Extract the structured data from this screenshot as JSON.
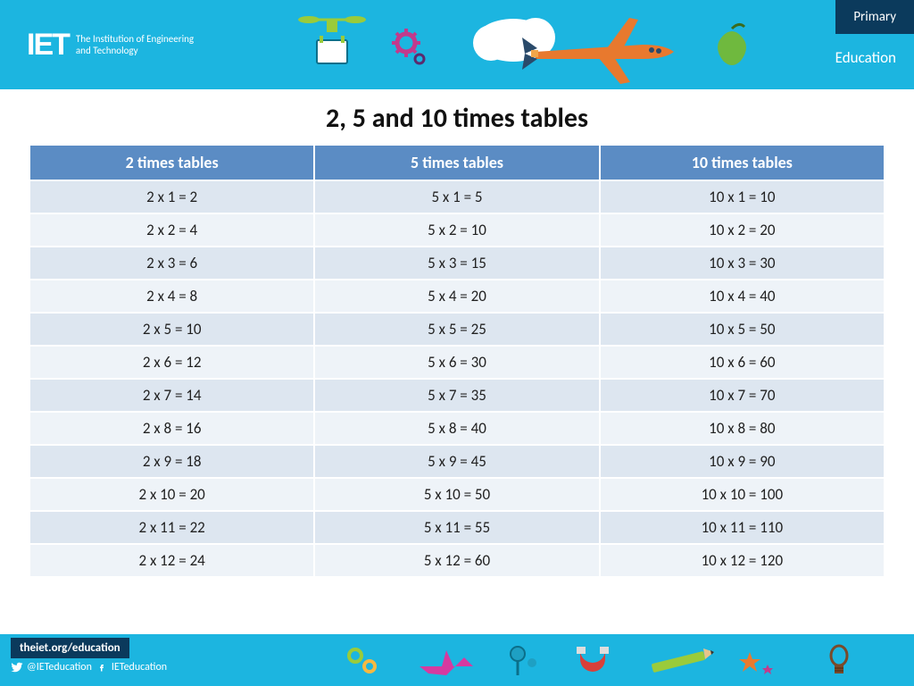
{
  "colors": {
    "header_bg": "#1cb5e0",
    "brand_box": "#0b3a5c",
    "th_bg": "#5b8cc4",
    "row_odd": "#dde6f0",
    "row_even": "#eef3f8",
    "title": "#111111",
    "cell_text": "#222222",
    "white": "#ffffff"
  },
  "header": {
    "logo_mark": "IET",
    "logo_tagline": "The Institution of Engineering and Technology",
    "primary_label": "Primary",
    "education_label": "Education",
    "icons": [
      "drone",
      "gear",
      "cloud-plane",
      "apple"
    ]
  },
  "title": "2, 5 and 10 times tables",
  "table": {
    "columns": [
      "2 times tables",
      "5 times tables",
      "10 times tables"
    ],
    "col_width_pct": [
      33.33,
      33.33,
      33.33
    ],
    "header_fontsize": 18,
    "cell_fontsize": 17,
    "rows": [
      [
        "2 x 1 = 2",
        "5 x 1 = 5",
        "10 x 1 = 10"
      ],
      [
        "2 x 2 = 4",
        "5 x 2 = 10",
        "10 x 2 = 20"
      ],
      [
        "2 x 3 = 6",
        "5 x 3 = 15",
        "10 x 3 = 30"
      ],
      [
        "2 x 4 = 8",
        "5 x 4 = 20",
        "10 x 4 = 40"
      ],
      [
        "2 x 5 = 10",
        "5 x 5 = 25",
        "10 x 5 = 50"
      ],
      [
        "2 x 6 = 12",
        "5 x 6 = 30",
        "10 x 6 = 60"
      ],
      [
        "2 x 7 = 14",
        "5 x 7 = 35",
        "10 x 7 = 70"
      ],
      [
        "2 x 8 = 16",
        "5 x 8 = 40",
        "10 x 8 = 80"
      ],
      [
        "2 x 9 = 18",
        "5 x 9 = 45",
        "10 x 9 = 90"
      ],
      [
        "2 x 10 = 20",
        "5 x 10 = 50",
        "10 x 10 = 100"
      ],
      [
        "2 x 11 = 22",
        "5 x 11 = 55",
        "10 x 11 = 110"
      ],
      [
        "2 x 12 = 24",
        "5 x 12 = 60",
        "10 x 12 = 120"
      ]
    ]
  },
  "footer": {
    "url": "theiet.org/education",
    "twitter": "@IETeducation",
    "facebook": "IETeducation",
    "icons": [
      "gears",
      "plane",
      "pin",
      "magnet",
      "pencil",
      "star",
      "bulb"
    ]
  }
}
